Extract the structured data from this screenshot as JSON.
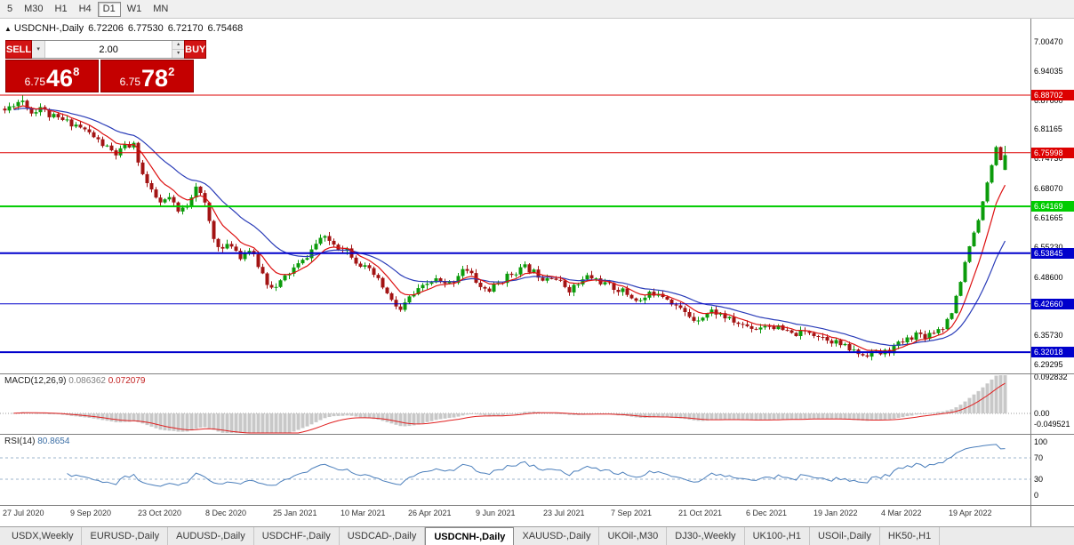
{
  "icons": {
    "collapse": "▲",
    "up": "▴",
    "down": "▾",
    "dropdown": "▾"
  },
  "toolbar": {
    "buttons": [
      "5",
      "M30",
      "H1",
      "H4",
      "D1",
      "W1",
      "MN"
    ],
    "active": "D1"
  },
  "chart_header": {
    "symbol_label": "USDCNH-,Daily",
    "open": "6.72206",
    "high": "6.77530",
    "low": "6.72170",
    "close": "6.75468"
  },
  "trade_panel": {
    "sell_label": "SELL",
    "buy_label": "BUY",
    "lots": "2.00",
    "sell_price": {
      "prefix": "6.75",
      "pips": "46",
      "point": "8"
    },
    "buy_price": {
      "prefix": "6.75",
      "pips": "78",
      "point": "2"
    }
  },
  "price_axis": {
    "labels": [
      {
        "text": "7.00470",
        "price": 7.0047
      },
      {
        "text": "6.94035",
        "price": 6.94035
      },
      {
        "text": "6.87600",
        "price": 6.876
      },
      {
        "text": "6.81165",
        "price": 6.81165
      },
      {
        "text": "6.74730",
        "price": 6.7473
      },
      {
        "text": "6.68070",
        "price": 6.6807
      },
      {
        "text": "6.61665",
        "price": 6.61665
      },
      {
        "text": "6.55230",
        "price": 6.5523
      },
      {
        "text": "6.48600",
        "price": 6.486
      },
      {
        "text": "6.42165",
        "price": 6.42165
      },
      {
        "text": "6.35730",
        "price": 6.3573
      },
      {
        "text": "6.29295",
        "price": 6.29295
      }
    ]
  },
  "macd": {
    "name": "MACD(12,26,9)",
    "value": "0.086362",
    "signal": "0.072079",
    "axis": [
      {
        "text": "0.092832",
        "v": 0.092832
      },
      {
        "text": "0.00",
        "v": 0
      },
      {
        "text": "-0.049521",
        "v": -0.049521
      }
    ]
  },
  "rsi": {
    "name": "RSI(14)",
    "value": "80.8654",
    "axis": [
      {
        "text": "100",
        "v": 100
      },
      {
        "text": "70",
        "v": 70
      },
      {
        "text": "30",
        "v": 30
      },
      {
        "text": "0",
        "v": 0
      }
    ],
    "level_lines": [
      70,
      30
    ]
  },
  "tabs": {
    "active_index": 5,
    "items": [
      "USDX,Weekly",
      "EURUSD-,Daily",
      "AUDUSD-,Daily",
      "USDCHF-,Daily",
      "USDCAD-,Daily",
      "USDCNH-,Daily",
      "XAUUSD-,Daily",
      "UKOil-,M30",
      "DJ30-,Weekly",
      "UK100-,H1",
      "USOil-,Daily",
      "HK50-,H1"
    ]
  },
  "chart_data": {
    "type": "candlestick",
    "symbol": "USDCNH-",
    "timeframe": "Daily",
    "num_candles": 226,
    "last_candle": {
      "open": 6.72206,
      "high": 6.7753,
      "low": 6.7217,
      "close": 6.75468
    },
    "levels": [
      {
        "text": "6.88702",
        "price": 6.88702,
        "color": "#dd0000",
        "width": 1
      },
      {
        "text": "6.75998",
        "price": 6.75998,
        "color": "#dd0000",
        "width": 1
      },
      {
        "text": "6.64169",
        "price": 6.64169,
        "color": "#00cc00",
        "width": 2
      },
      {
        "text": "6.53845",
        "price": 6.53845,
        "color": "#0000cc",
        "width": 2
      },
      {
        "text": "6.42660",
        "price": 6.4266,
        "color": "#0000cc",
        "width": 1
      },
      {
        "text": "6.32018",
        "price": 6.32018,
        "color": "#0000cc",
        "width": 2
      }
    ],
    "dates": [
      "27 Jul 2020",
      "9 Sep 2020",
      "23 Oct 2020",
      "8 Dec 2020",
      "25 Jan 2021",
      "10 Mar 2021",
      "26 Apr 2021",
      "9 Jun 2021",
      "23 Jul 2021",
      "7 Sep 2021",
      "21 Oct 2021",
      "6 Dec 2021",
      "19 Jan 2022",
      "4 Mar 2022",
      "19 Apr 2022"
    ],
    "indicators": {
      "macd": {
        "settings": "12,26,9",
        "value": 0.086362,
        "signal": 0.072079
      },
      "rsi": {
        "period": 14,
        "value": 80.8654
      }
    },
    "colors": {
      "up": "#0b9b0b",
      "down": "#a31414",
      "ma_fast": "#dd1111",
      "ma_slow": "#2a3cb8",
      "macd_hist": "#c8c8c8",
      "macd_signal": "#e02020",
      "rsi_line": "#4a7ebb"
    },
    "price_anchors": [
      [
        0,
        6.853
      ],
      [
        2,
        6.869
      ],
      [
        4,
        6.876
      ],
      [
        6,
        6.848
      ],
      [
        8,
        6.862
      ],
      [
        10,
        6.842
      ],
      [
        13,
        6.831
      ],
      [
        16,
        6.822
      ],
      [
        19,
        6.803
      ],
      [
        22,
        6.778
      ],
      [
        25,
        6.756
      ],
      [
        27,
        6.773
      ],
      [
        29,
        6.776
      ],
      [
        31,
        6.712
      ],
      [
        33,
        6.672
      ],
      [
        35,
        6.648
      ],
      [
        37,
        6.66
      ],
      [
        39,
        6.628
      ],
      [
        41,
        6.645
      ],
      [
        43,
        6.69
      ],
      [
        45,
        6.645
      ],
      [
        47,
        6.57
      ],
      [
        49,
        6.547
      ],
      [
        51,
        6.558
      ],
      [
        53,
        6.532
      ],
      [
        55,
        6.546
      ],
      [
        57,
        6.512
      ],
      [
        59,
        6.474
      ],
      [
        61,
        6.462
      ],
      [
        63,
        6.486
      ],
      [
        65,
        6.505
      ],
      [
        67,
        6.52
      ],
      [
        69,
        6.546
      ],
      [
        71,
        6.572
      ],
      [
        73,
        6.566
      ],
      [
        75,
        6.552
      ],
      [
        77,
        6.548
      ],
      [
        79,
        6.522
      ],
      [
        81,
        6.506
      ],
      [
        83,
        6.49
      ],
      [
        85,
        6.464
      ],
      [
        87,
        6.432
      ],
      [
        89,
        6.412
      ],
      [
        91,
        6.44
      ],
      [
        93,
        6.455
      ],
      [
        95,
        6.47
      ],
      [
        97,
        6.48
      ],
      [
        99,
        6.468
      ],
      [
        101,
        6.478
      ],
      [
        103,
        6.506
      ],
      [
        105,
        6.49
      ],
      [
        107,
        6.463
      ],
      [
        109,
        6.457
      ],
      [
        111,
        6.472
      ],
      [
        113,
        6.487
      ],
      [
        115,
        6.499
      ],
      [
        117,
        6.507
      ],
      [
        119,
        6.497
      ],
      [
        121,
        6.485
      ],
      [
        123,
        6.49
      ],
      [
        125,
        6.473
      ],
      [
        127,
        6.459
      ],
      [
        129,
        6.47
      ],
      [
        131,
        6.487
      ],
      [
        133,
        6.481
      ],
      [
        135,
        6.47
      ],
      [
        137,
        6.462
      ],
      [
        139,
        6.455
      ],
      [
        141,
        6.441
      ],
      [
        143,
        6.433
      ],
      [
        145,
        6.447
      ],
      [
        147,
        6.454
      ],
      [
        149,
        6.44
      ],
      [
        151,
        6.423
      ],
      [
        153,
        6.406
      ],
      [
        155,
        6.393
      ],
      [
        157,
        6.4
      ],
      [
        159,
        6.411
      ],
      [
        161,
        6.404
      ],
      [
        163,
        6.391
      ],
      [
        165,
        6.383
      ],
      [
        167,
        6.378
      ],
      [
        169,
        6.373
      ],
      [
        171,
        6.381
      ],
      [
        173,
        6.377
      ],
      [
        175,
        6.368
      ],
      [
        177,
        6.359
      ],
      [
        179,
        6.362
      ],
      [
        181,
        6.366
      ],
      [
        183,
        6.357
      ],
      [
        185,
        6.351
      ],
      [
        187,
        6.342
      ],
      [
        189,
        6.331
      ],
      [
        191,
        6.322
      ],
      [
        193,
        6.314
      ],
      [
        195,
        6.321
      ],
      [
        197,
        6.317
      ],
      [
        199,
        6.324
      ],
      [
        201,
        6.337
      ],
      [
        203,
        6.349
      ],
      [
        205,
        6.361
      ],
      [
        207,
        6.357
      ],
      [
        209,
        6.367
      ],
      [
        211,
        6.377
      ],
      [
        213,
        6.408
      ],
      [
        214,
        6.442
      ],
      [
        215,
        6.476
      ],
      [
        216,
        6.519
      ],
      [
        217,
        6.554
      ],
      [
        218,
        6.584
      ],
      [
        219,
        6.613
      ],
      [
        220,
        6.654
      ],
      [
        221,
        6.694
      ],
      [
        222,
        6.734
      ],
      [
        223,
        6.772
      ],
      [
        224,
        6.742
      ],
      [
        225,
        6.755
      ]
    ]
  }
}
